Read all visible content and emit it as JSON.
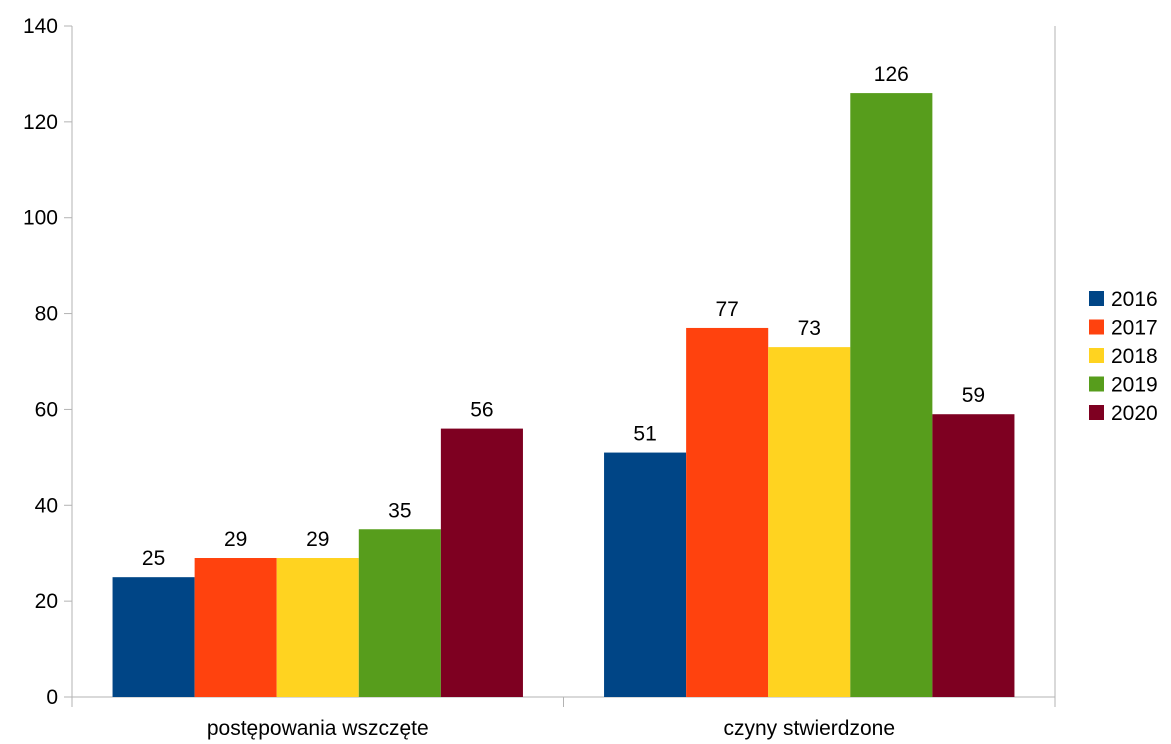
{
  "chart_data": {
    "type": "bar",
    "categories": [
      "postępowania wszczęte",
      "czyny stwierdzone"
    ],
    "series": [
      {
        "name": "2016",
        "color": "#004586",
        "values": [
          25,
          51
        ]
      },
      {
        "name": "2017",
        "color": "#ff420e",
        "values": [
          29,
          77
        ]
      },
      {
        "name": "2018",
        "color": "#ffd320",
        "values": [
          29,
          73
        ]
      },
      {
        "name": "2019",
        "color": "#579d1c",
        "values": [
          35,
          126
        ]
      },
      {
        "name": "2020",
        "color": "#7e0021",
        "values": [
          56,
          59
        ]
      }
    ],
    "ylim": [
      0,
      140
    ],
    "yticks": [
      0,
      20,
      40,
      60,
      80,
      100,
      120,
      140
    ],
    "grid": false,
    "legend": "right",
    "data_labels": true
  }
}
